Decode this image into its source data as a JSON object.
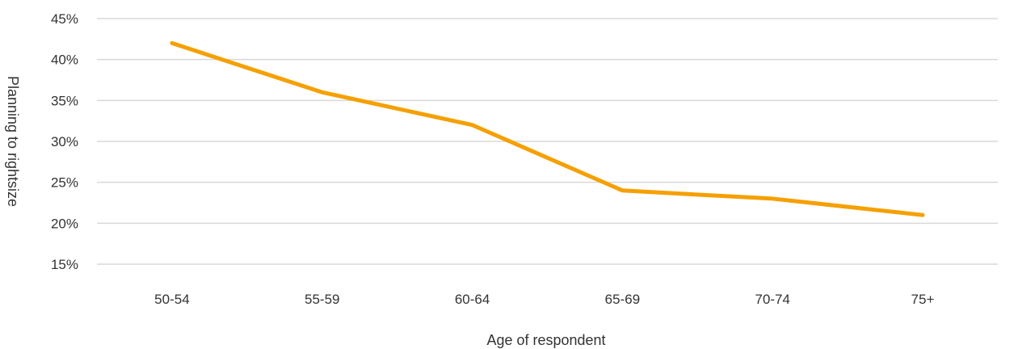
{
  "chart_data": {
    "type": "line",
    "title": "",
    "xlabel": "Age of respondent",
    "ylabel": "Planning to rightsize",
    "categories": [
      "50-54",
      "55-59",
      "60-64",
      "65-69",
      "70-74",
      "75+"
    ],
    "series": [
      {
        "values": [
          42,
          36,
          32,
          24,
          23,
          21
        ],
        "color": "#f5a000"
      }
    ],
    "ylim": [
      15,
      45
    ],
    "yticks": [
      15,
      20,
      25,
      30,
      35,
      40,
      45
    ],
    "ytick_labels": [
      "15%",
      "20%",
      "25%",
      "30%",
      "35%",
      "40%",
      "45%"
    ],
    "grid": true,
    "legend": "none"
  }
}
